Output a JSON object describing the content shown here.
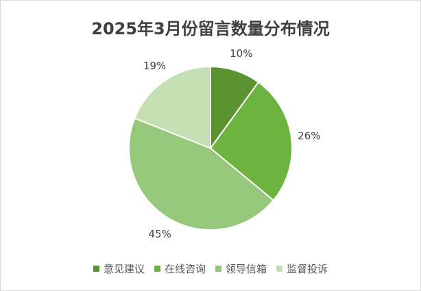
{
  "chart_data": {
    "type": "pie",
    "title": "2025年3月份留言数量分布情况",
    "categories": [
      "意见建议",
      "在线咨询",
      "领导信箱",
      "监督投诉"
    ],
    "values": [
      10,
      26,
      45,
      19
    ],
    "labels": [
      "10%",
      "26%",
      "45%",
      "19%"
    ],
    "colors": [
      "#5a9230",
      "#6db33f",
      "#95c87a",
      "#c3dfb3"
    ],
    "legend_position": "bottom"
  }
}
